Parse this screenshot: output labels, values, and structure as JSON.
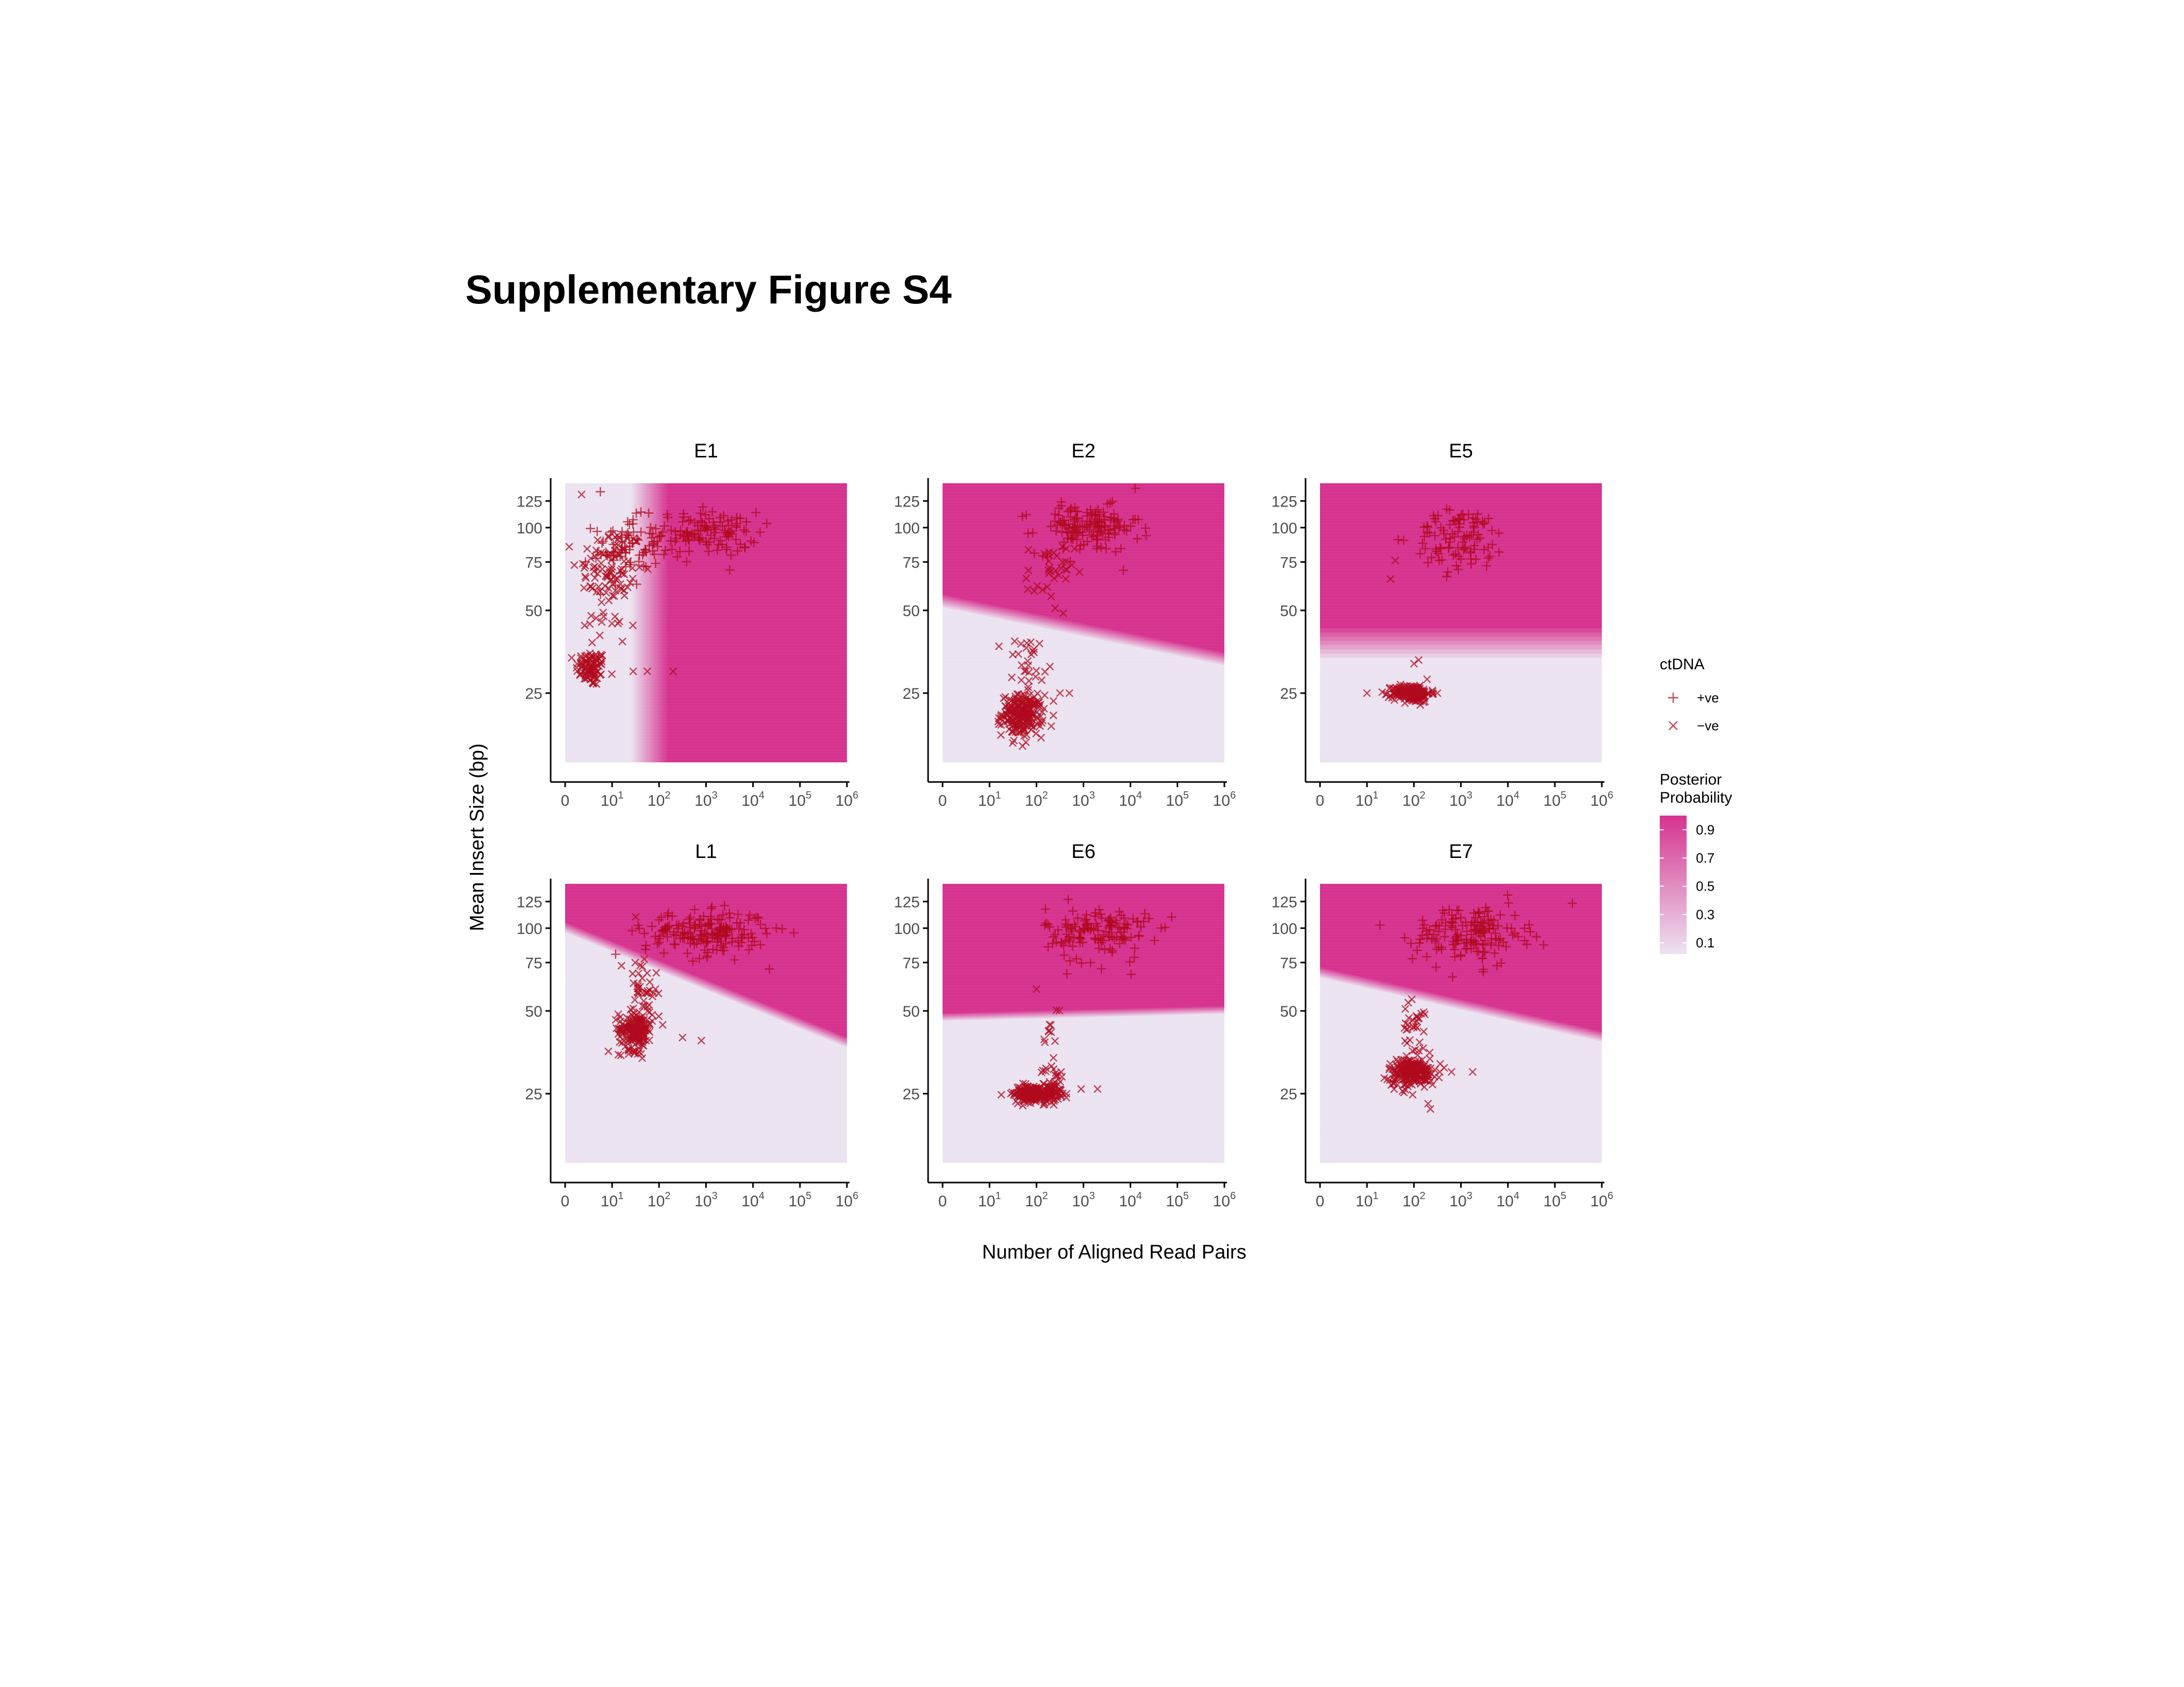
{
  "figure_title": "Supplementary Figure S4",
  "colors": {
    "high_prob": "#d6338f",
    "low_prob": "#ece3f0",
    "point": "#b00a1e",
    "axis": "#000000",
    "tick_label": "#4d4d4d"
  },
  "chart_data": {
    "type": "scatter",
    "layout": "faceted 2x3 grid",
    "xlabel": "Number of Aligned Read Pairs",
    "ylabel": "Mean Insert Size (bp)",
    "x_scale": "log-like (0, 10^1 ... 10^6)",
    "y_scale": "log",
    "x_tick_labels": [
      {
        "base": "0",
        "exp": ""
      },
      {
        "base": "10",
        "exp": "1"
      },
      {
        "base": "10",
        "exp": "2"
      },
      {
        "base": "10",
        "exp": "3"
      },
      {
        "base": "10",
        "exp": "4"
      },
      {
        "base": "10",
        "exp": "5"
      },
      {
        "base": "10",
        "exp": "6"
      }
    ],
    "y_ticks": [
      25,
      50,
      75,
      100,
      125
    ],
    "y_tick_labels": [
      "25",
      "50",
      "75",
      "100",
      "125"
    ],
    "ylim": [
      14,
      145
    ],
    "legend": {
      "ctdna_title": "ctDNA",
      "ctdna_items": [
        {
          "label": "+ve",
          "marker": "plus"
        },
        {
          "label": "−ve",
          "marker": "cross"
        }
      ],
      "prob_title_line1": "Posterior",
      "prob_title_line2": "Probability",
      "prob_ticks": [
        {
          "value": 0.9,
          "label": "0.9"
        },
        {
          "value": 0.7,
          "label": "0.7"
        },
        {
          "value": 0.5,
          "label": "0.5"
        },
        {
          "value": 0.3,
          "label": "0.3"
        },
        {
          "value": 0.1,
          "label": "0.1"
        }
      ],
      "placement": "right"
    },
    "panels": [
      {
        "title": "E1",
        "boundary": {
          "type": "vertical",
          "x0": 1.8,
          "x_top": 2.05,
          "softness": 0.1
        },
        "clusters": [
          {
            "marker": "cross",
            "n": 90,
            "x_mean": 0.55,
            "x_sd": 0.16,
            "y_mean": 31,
            "y_sd": 2.3
          },
          {
            "marker": "cross",
            "n": 110,
            "x_mean": 0.95,
            "x_sd": 0.35,
            "y_mean": 68,
            "y_sd": 17
          },
          {
            "marker": "plus",
            "n": 70,
            "x_mean": 1.3,
            "x_sd": 0.35,
            "y_mean": 85,
            "y_sd": 12
          },
          {
            "marker": "plus",
            "n": 120,
            "x_mean": 3.0,
            "x_sd": 0.55,
            "y_mean": 96,
            "y_sd": 9
          }
        ],
        "outliers": [
          {
            "marker": "cross",
            "x": 1.45,
            "y": 30
          },
          {
            "marker": "cross",
            "x": 1.75,
            "y": 30
          },
          {
            "marker": "cross",
            "x": 2.3,
            "y": 30
          },
          {
            "marker": "cross",
            "x": 0.35,
            "y": 132
          },
          {
            "marker": "plus",
            "x": 0.75,
            "y": 135
          }
        ]
      },
      {
        "title": "E2",
        "boundary": {
          "type": "line",
          "a": 57,
          "b": 35,
          "softness": 0.05
        },
        "clusters": [
          {
            "marker": "cross",
            "n": 230,
            "x_mean": 1.7,
            "x_sd": 0.22,
            "y_mean": 21,
            "y_sd": 1.8
          },
          {
            "marker": "cross",
            "n": 30,
            "x_mean": 1.85,
            "x_sd": 0.15,
            "y_mean": 32,
            "y_sd": 4
          },
          {
            "marker": "cross",
            "n": 35,
            "x_mean": 2.3,
            "x_sd": 0.25,
            "y_mean": 68,
            "y_sd": 10
          },
          {
            "marker": "plus",
            "n": 150,
            "x_mean": 3.1,
            "x_sd": 0.55,
            "y_mean": 100,
            "y_sd": 10
          }
        ],
        "outliers": [
          {
            "marker": "cross",
            "x": 1.2,
            "y": 37
          },
          {
            "marker": "cross",
            "x": 2.5,
            "y": 25
          },
          {
            "marker": "cross",
            "x": 2.7,
            "y": 25
          },
          {
            "marker": "plus",
            "x": 4.1,
            "y": 139
          }
        ]
      },
      {
        "title": "E5",
        "boundary": {
          "type": "line",
          "a": 43,
          "b": 43,
          "softness": 0.12
        },
        "clusters": [
          {
            "marker": "cross",
            "n": 200,
            "x_mean": 1.95,
            "x_sd": 0.2,
            "y_mean": 25,
            "y_sd": 0.9
          },
          {
            "marker": "plus",
            "n": 100,
            "x_mean": 3.0,
            "x_sd": 0.5,
            "y_mean": 92,
            "y_sd": 12
          }
        ],
        "outliers": [
          {
            "marker": "cross",
            "x": 1.0,
            "y": 25
          },
          {
            "marker": "cross",
            "x": 2.5,
            "y": 25
          },
          {
            "marker": "cross",
            "x": 2.0,
            "y": 32
          },
          {
            "marker": "cross",
            "x": 2.1,
            "y": 33
          },
          {
            "marker": "cross",
            "x": 1.5,
            "y": 65
          },
          {
            "marker": "cross",
            "x": 1.6,
            "y": 76
          }
        ]
      },
      {
        "title": "L1",
        "boundary": {
          "type": "line",
          "a": 105,
          "b": 40,
          "softness": 0.04
        },
        "clusters": [
          {
            "marker": "cross",
            "n": 180,
            "x_mean": 1.5,
            "x_sd": 0.18,
            "y_mean": 43,
            "y_sd": 3.5
          },
          {
            "marker": "cross",
            "n": 40,
            "x_mean": 1.65,
            "x_sd": 0.15,
            "y_mean": 58,
            "y_sd": 8
          },
          {
            "marker": "plus",
            "n": 190,
            "x_mean": 3.0,
            "x_sd": 0.65,
            "y_mean": 97,
            "y_sd": 9
          }
        ],
        "outliers": [
          {
            "marker": "cross",
            "x": 2.5,
            "y": 40
          },
          {
            "marker": "cross",
            "x": 2.9,
            "y": 39
          },
          {
            "marker": "cross",
            "x": 1.2,
            "y": 73
          },
          {
            "marker": "cross",
            "x": 1.5,
            "y": 110
          }
        ]
      },
      {
        "title": "E6",
        "boundary": {
          "type": "line",
          "a": 49,
          "b": 52,
          "softness": 0.03
        },
        "clusters": [
          {
            "marker": "cross",
            "n": 220,
            "x_mean": 2.0,
            "x_sd": 0.25,
            "y_mean": 25,
            "y_sd": 0.9
          },
          {
            "marker": "cross",
            "n": 25,
            "x_mean": 2.35,
            "x_sd": 0.12,
            "y_mean": 28,
            "y_sd": 2
          },
          {
            "marker": "cross",
            "n": 12,
            "x_mean": 2.35,
            "x_sd": 0.12,
            "y_mean": 42,
            "y_sd": 7
          },
          {
            "marker": "plus",
            "n": 140,
            "x_mean": 3.3,
            "x_sd": 0.55,
            "y_mean": 97,
            "y_sd": 11
          }
        ],
        "outliers": [
          {
            "marker": "cross",
            "x": 2.95,
            "y": 26
          },
          {
            "marker": "cross",
            "x": 3.3,
            "y": 26
          },
          {
            "marker": "cross",
            "x": 2.0,
            "y": 60
          }
        ]
      },
      {
        "title": "E7",
        "boundary": {
          "type": "line",
          "a": 72,
          "b": 42,
          "softness": 0.04
        },
        "clusters": [
          {
            "marker": "cross",
            "n": 200,
            "x_mean": 1.95,
            "x_sd": 0.25,
            "y_mean": 30,
            "y_sd": 1.8
          },
          {
            "marker": "cross",
            "n": 40,
            "x_mean": 2.05,
            "x_sd": 0.15,
            "y_mean": 42,
            "y_sd": 6
          },
          {
            "marker": "plus",
            "n": 160,
            "x_mean": 3.2,
            "x_sd": 0.6,
            "y_mean": 97,
            "y_sd": 12
          }
        ],
        "outliers": [
          {
            "marker": "cross",
            "x": 2.55,
            "y": 30
          },
          {
            "marker": "cross",
            "x": 2.8,
            "y": 30
          },
          {
            "marker": "cross",
            "x": 3.25,
            "y": 30
          },
          {
            "marker": "cross",
            "x": 2.3,
            "y": 23
          },
          {
            "marker": "cross",
            "x": 2.35,
            "y": 22
          }
        ]
      }
    ]
  }
}
